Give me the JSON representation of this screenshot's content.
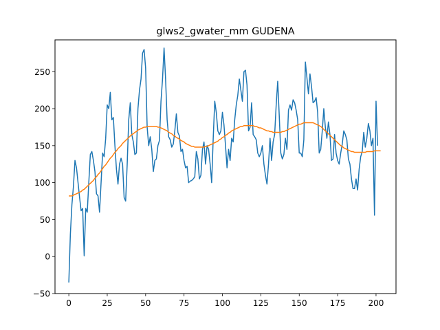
{
  "chart_data": {
    "type": "line",
    "title": "glws2_gwater_mm GUDENA",
    "xlabel": "",
    "ylabel": "",
    "xlim": [
      -9,
      213
    ],
    "ylim": [
      -50,
      293
    ],
    "x_ticks": [
      0,
      25,
      50,
      75,
      100,
      125,
      150,
      175,
      200
    ],
    "y_ticks": [
      -50,
      0,
      50,
      100,
      150,
      200,
      250
    ],
    "grid": false,
    "colors": {
      "series_raw": "#1f77b4",
      "series_smooth": "#ff7f0e"
    },
    "series": [
      {
        "values": [
          -35,
          30,
          70,
          95,
          130,
          120,
          100,
          80,
          62,
          65,
          1,
          65,
          60,
          100,
          138,
          142,
          130,
          115,
          85,
          82,
          60,
          100,
          140,
          135,
          160,
          205,
          200,
          222,
          185,
          188,
          150,
          118,
          98,
          125,
          133,
          125,
          80,
          75,
          125,
          185,
          208,
          165,
          155,
          138,
          140,
          200,
          225,
          240,
          275,
          280,
          255,
          175,
          150,
          162,
          145,
          115,
          130,
          132,
          150,
          157,
          210,
          240,
          282,
          240,
          185,
          162,
          158,
          148,
          152,
          170,
          193,
          168,
          163,
          142,
          145,
          130,
          120,
          122,
          100,
          102,
          103,
          105,
          108,
          142,
          132,
          105,
          110,
          145,
          155,
          125,
          150,
          145,
          125,
          100,
          160,
          210,
          195,
          170,
          165,
          170,
          195,
          178,
          150,
          120,
          145,
          130,
          160,
          155,
          185,
          205,
          218,
          240,
          225,
          210,
          250,
          252,
          232,
          170,
          175,
          208,
          165,
          162,
          158,
          140,
          135,
          140,
          150,
          125,
          110,
          98,
          125,
          160,
          130,
          155,
          165,
          205,
          237,
          190,
          140,
          132,
          138,
          160,
          145,
          198,
          205,
          198,
          212,
          208,
          198,
          185,
          140,
          140,
          135,
          158,
          263,
          242,
          220,
          247,
          230,
          208,
          210,
          215,
          195,
          140,
          145,
          170,
          200,
          175,
          160,
          182,
          165,
          130,
          132,
          165,
          140,
          130,
          125,
          140,
          152,
          170,
          165,
          158,
          132,
          125,
          105,
          92,
          92,
          105,
          90,
          118,
          135,
          142,
          168,
          148,
          160,
          180,
          170,
          150,
          160,
          56,
          210,
          150
        ]
      },
      {
        "values": [
          82,
          82,
          82,
          83,
          84,
          85,
          86,
          87,
          88,
          90,
          91,
          93,
          95,
          97,
          99,
          101,
          103,
          106,
          108,
          111,
          113,
          116,
          119,
          122,
          124,
          127,
          130,
          133,
          135,
          138,
          141,
          143,
          146,
          148,
          150,
          153,
          155,
          157,
          159,
          161,
          163,
          165,
          166,
          168,
          169,
          171,
          172,
          173,
          174,
          175,
          175,
          176,
          176,
          176,
          176,
          176,
          176,
          176,
          175,
          175,
          174,
          173,
          172,
          171,
          170,
          168,
          167,
          166,
          164,
          163,
          161,
          160,
          159,
          157,
          156,
          155,
          153,
          152,
          151,
          150,
          149,
          149,
          148,
          148,
          148,
          148,
          148,
          148,
          148,
          149,
          149,
          150,
          151,
          152,
          153,
          154,
          155,
          156,
          158,
          159,
          161,
          162,
          164,
          165,
          167,
          168,
          170,
          171,
          172,
          173,
          174,
          175,
          176,
          176,
          177,
          177,
          177,
          177,
          177,
          177,
          177,
          176,
          176,
          175,
          174,
          174,
          173,
          172,
          171,
          170,
          170,
          169,
          169,
          168,
          168,
          168,
          168,
          168,
          168,
          169,
          169,
          170,
          171,
          172,
          173,
          174,
          175,
          176,
          177,
          178,
          179,
          179,
          180,
          181,
          181,
          181,
          181,
          181,
          181,
          181,
          180,
          179,
          178,
          177,
          176,
          174,
          172,
          170,
          168,
          166,
          164,
          162,
          160,
          158,
          156,
          154,
          152,
          150,
          149,
          147,
          146,
          145,
          144,
          143,
          142,
          142,
          141,
          141,
          141,
          141,
          141,
          141,
          141,
          141,
          142,
          142,
          142,
          142,
          142,
          143,
          143,
          143,
          143,
          143
        ]
      }
    ]
  }
}
